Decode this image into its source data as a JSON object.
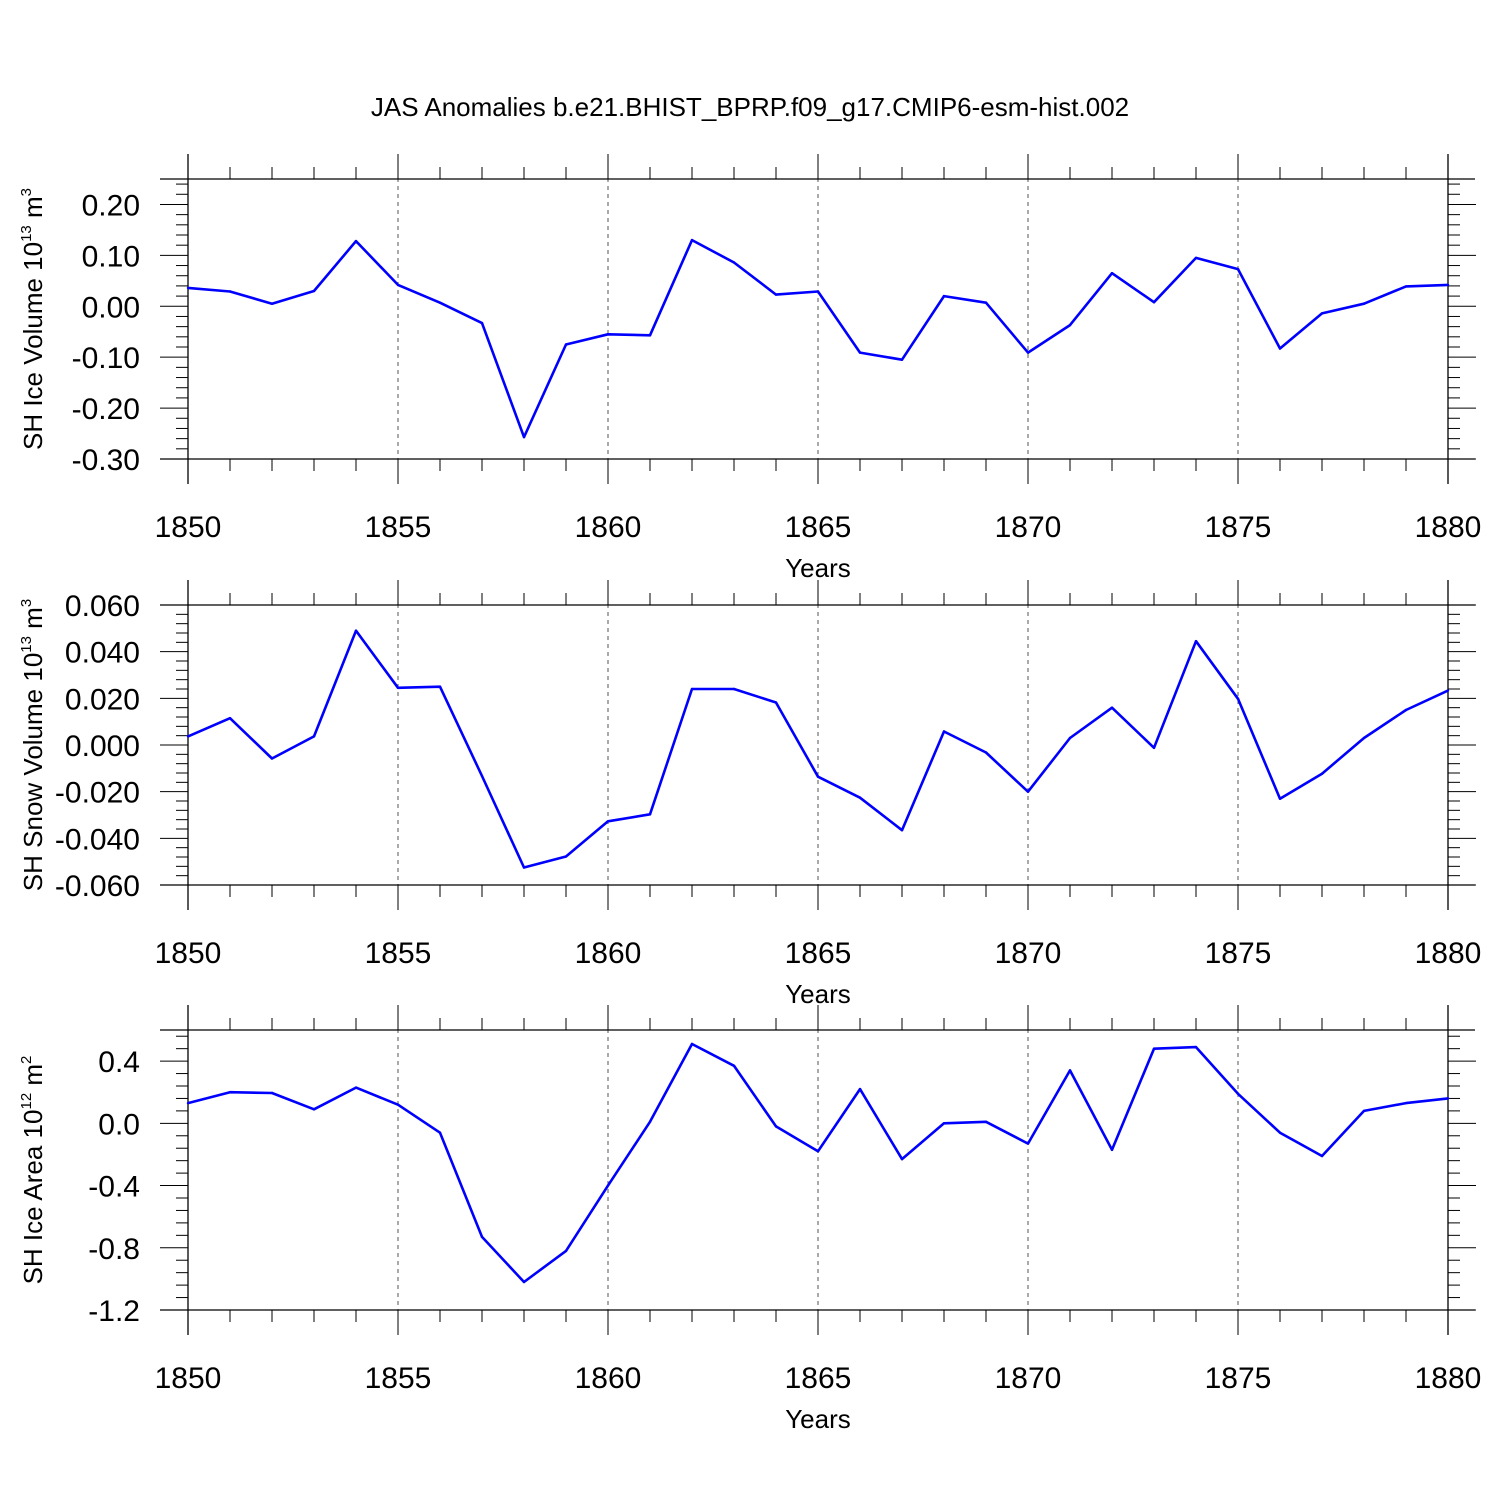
{
  "chart_data": {
    "type": "line",
    "title": "JAS Anomalies b.e21.BHIST_BPRP.f09_g17.CMIP6-esm-hist.002",
    "line_color": "#0000ff",
    "x": [
      1850,
      1851,
      1852,
      1853,
      1854,
      1855,
      1856,
      1857,
      1858,
      1859,
      1860,
      1861,
      1862,
      1863,
      1864,
      1865,
      1866,
      1867,
      1868,
      1869,
      1870,
      1871,
      1872,
      1873,
      1874,
      1875,
      1876,
      1877,
      1878,
      1879,
      1880
    ],
    "xlim": [
      1850,
      1880
    ],
    "xticks": [
      "1850",
      "1855",
      "1860",
      "1865",
      "1870",
      "1875",
      "1880"
    ],
    "xlabel": "Years",
    "panels": [
      {
        "ylabel_main": "SH Ice Volume 10",
        "ylabel_exp": "13",
        "ylabel_unit": " m",
        "ylabel_unit_exp": "3",
        "ylim": [
          -0.3,
          0.25
        ],
        "yticks": [
          "-0.30",
          "-0.20",
          "-0.10",
          "0.00",
          "0.10",
          "0.20"
        ],
        "values": [
          0.036,
          0.029,
          0.005,
          0.03,
          0.128,
          0.042,
          0.007,
          -0.033,
          -0.257,
          -0.075,
          -0.055,
          -0.057,
          0.13,
          0.086,
          0.023,
          0.029,
          -0.091,
          -0.105,
          0.02,
          0.007,
          -0.091,
          -0.037,
          0.065,
          0.008,
          0.095,
          0.073,
          -0.083,
          -0.014,
          0.005,
          0.039,
          0.042
        ]
      },
      {
        "ylabel_main": "SH Snow Volume 10",
        "ylabel_exp": "13",
        "ylabel_unit": " m",
        "ylabel_unit_exp": "3",
        "ylim": [
          -0.06,
          0.06
        ],
        "yticks": [
          "-0.060",
          "-0.040",
          "-0.020",
          "0.000",
          "0.020",
          "0.040",
          "0.060"
        ],
        "values": [
          0.0037,
          0.0115,
          -0.0058,
          0.0037,
          0.049,
          0.0245,
          0.025,
          -0.0133,
          -0.0525,
          -0.0478,
          -0.0327,
          -0.0297,
          0.024,
          0.024,
          0.0182,
          -0.0136,
          -0.0226,
          -0.0365,
          0.0058,
          -0.0032,
          -0.02,
          0.003,
          0.016,
          -0.0012,
          0.0445,
          0.0198,
          -0.023,
          -0.0123,
          0.003,
          0.015,
          0.0233
        ]
      },
      {
        "ylabel_main": "SH Ice Area 10",
        "ylabel_exp": "12",
        "ylabel_unit": " m",
        "ylabel_unit_exp": "2",
        "ylim": [
          -1.2,
          0.6
        ],
        "yticks": [
          "-1.2",
          "-0.8",
          "-0.4",
          "0.0",
          "0.4"
        ],
        "values": [
          0.13,
          0.2,
          0.195,
          0.09,
          0.23,
          0.12,
          -0.06,
          -0.73,
          -1.02,
          -0.82,
          -0.4,
          0.01,
          0.51,
          0.37,
          -0.02,
          -0.18,
          0.22,
          -0.23,
          0.0,
          0.01,
          -0.13,
          0.34,
          -0.17,
          0.48,
          0.49,
          0.19,
          -0.06,
          -0.21,
          0.08,
          0.13,
          0.16
        ]
      }
    ]
  }
}
